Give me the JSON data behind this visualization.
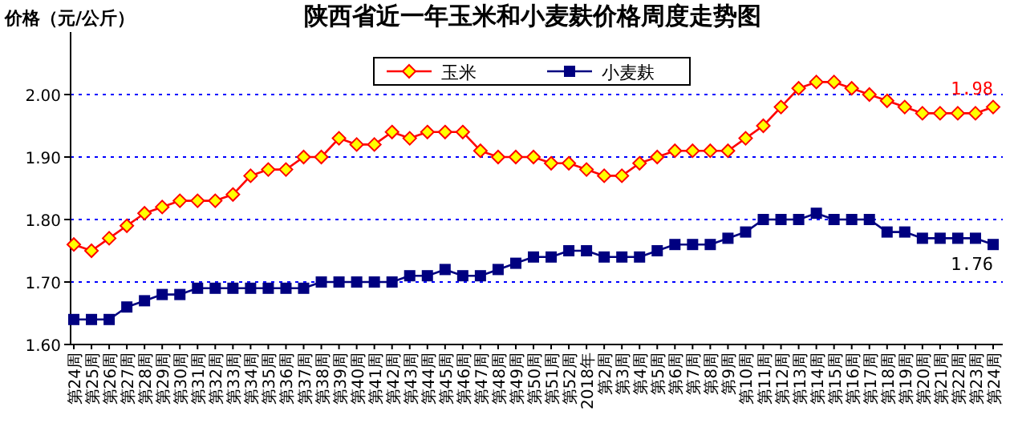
{
  "chart_data": {
    "type": "line",
    "title": "陕西省近一年玉米和小麦麸价格周度走势图",
    "ylabel": "价格（元/公斤）",
    "categories": [
      "第24周",
      "第25周",
      "第26周",
      "第27周",
      "第28周",
      "第29周",
      "第30周",
      "第31周",
      "第32周",
      "第33周",
      "第34周",
      "第35周",
      "第36周",
      "第37周",
      "第38周",
      "第39周",
      "第40周",
      "第41周",
      "第42周",
      "第43周",
      "第44周",
      "第45周",
      "第46周",
      "第47周",
      "第48周",
      "第49周",
      "第50周",
      "第51周",
      "第52周",
      "2018年",
      "第2周",
      "第3周",
      "第4周",
      "第5周",
      "第6周",
      "第7周",
      "第8周",
      "第9周",
      "第10周",
      "第11周",
      "第12周",
      "第13周",
      "第14周",
      "第15周",
      "第16周",
      "第17周",
      "第18周",
      "第19周",
      "第20周",
      "第21周",
      "第22周",
      "第23周",
      "第24周"
    ],
    "series": [
      {
        "name": "玉米",
        "color": "#ff0000",
        "marker": "diamond",
        "values": [
          1.76,
          1.75,
          1.77,
          1.79,
          1.81,
          1.82,
          1.83,
          1.83,
          1.83,
          1.84,
          1.87,
          1.88,
          1.88,
          1.9,
          1.9,
          1.93,
          1.92,
          1.92,
          1.94,
          1.93,
          1.94,
          1.94,
          1.94,
          1.91,
          1.9,
          1.9,
          1.9,
          1.89,
          1.89,
          1.88,
          1.87,
          1.87,
          1.89,
          1.9,
          1.91,
          1.91,
          1.91,
          1.91,
          1.93,
          1.95,
          1.98,
          2.01,
          2.02,
          2.02,
          2.01,
          2.0,
          1.99,
          1.98,
          1.97,
          1.97,
          1.97,
          1.97,
          1.98
        ],
        "value_labels": [
          null,
          null,
          null,
          null,
          null,
          null,
          null,
          null,
          null,
          null,
          null,
          null,
          null,
          null,
          null,
          null,
          null,
          null,
          null,
          null,
          null,
          null,
          null,
          null,
          null,
          null,
          null,
          null,
          null,
          null,
          null,
          null,
          null,
          null,
          null,
          null,
          null,
          null,
          null,
          null,
          null,
          null,
          null,
          null,
          null,
          null,
          null,
          null,
          null,
          null,
          null,
          null,
          "1.98"
        ]
      },
      {
        "name": "小麦麸",
        "color": "#000080",
        "marker": "square",
        "values": [
          1.64,
          1.64,
          1.64,
          1.66,
          1.67,
          1.68,
          1.68,
          1.69,
          1.69,
          1.69,
          1.69,
          1.69,
          1.69,
          1.69,
          1.7,
          1.7,
          1.7,
          1.7,
          1.7,
          1.71,
          1.71,
          1.72,
          1.71,
          1.71,
          1.72,
          1.73,
          1.74,
          1.74,
          1.75,
          1.75,
          1.74,
          1.74,
          1.74,
          1.75,
          1.76,
          1.76,
          1.76,
          1.77,
          1.78,
          1.8,
          1.8,
          1.8,
          1.81,
          1.8,
          1.8,
          1.8,
          1.78,
          1.78,
          1.77,
          1.77,
          1.77,
          1.77,
          1.76
        ],
        "value_labels": [
          null,
          null,
          null,
          null,
          null,
          null,
          null,
          null,
          null,
          null,
          null,
          null,
          null,
          null,
          null,
          null,
          null,
          null,
          null,
          null,
          null,
          null,
          null,
          null,
          null,
          null,
          null,
          null,
          null,
          null,
          null,
          null,
          null,
          null,
          null,
          null,
          null,
          null,
          null,
          null,
          null,
          null,
          null,
          null,
          null,
          null,
          null,
          null,
          null,
          null,
          null,
          null,
          "1.76"
        ]
      }
    ],
    "ylim": [
      1.6,
      2.1
    ],
    "yticks": [
      {
        "value": 1.6,
        "label": "1.60"
      },
      {
        "value": 1.7,
        "label": "1.70"
      },
      {
        "value": 1.8,
        "label": "1.80"
      },
      {
        "value": 1.9,
        "label": "1.90"
      },
      {
        "value": 2.0,
        "label": "2.00"
      }
    ],
    "grid": "y",
    "legend": "top",
    "line_style": "solid"
  }
}
